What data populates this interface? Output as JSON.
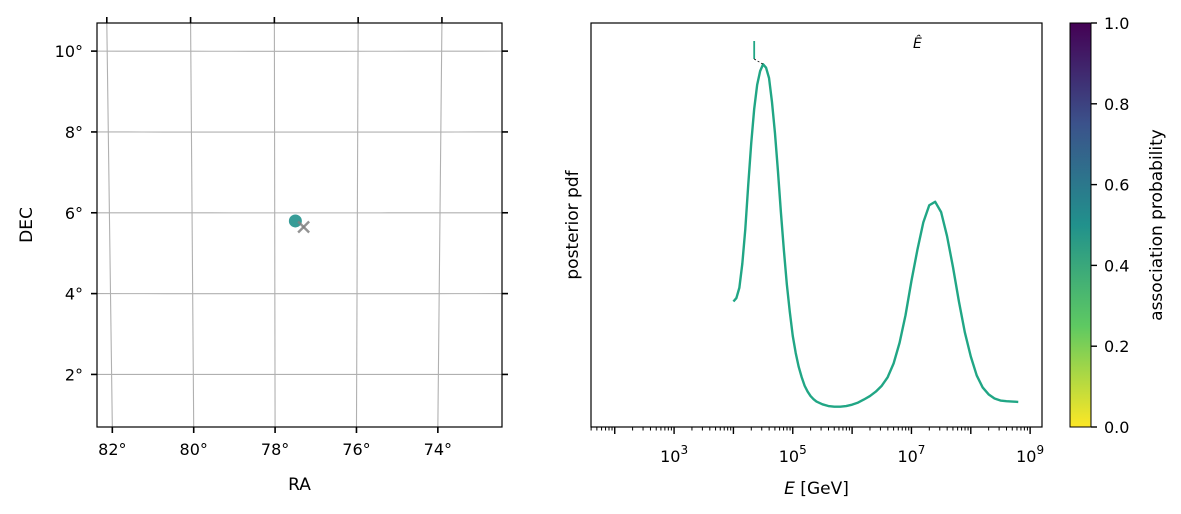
{
  "chart_data": [
    {
      "type": "scatter",
      "projection": "sky",
      "xlabel": "RA",
      "ylabel": "DEC",
      "xlim": [
        82.3,
        72.5
      ],
      "ylim": [
        0.7,
        10.7
      ],
      "x_ticks": [
        82,
        80,
        78,
        76,
        74
      ],
      "x_tick_labels": [
        "82°",
        "80°",
        "78°",
        "76°",
        "74°"
      ],
      "y_ticks": [
        2,
        4,
        6,
        8,
        10
      ],
      "y_tick_labels": [
        "2°",
        "4°",
        "6°",
        "8°",
        "10°"
      ],
      "grid": true,
      "points": [
        {
          "marker": "circle",
          "ra": 77.5,
          "dec": 5.8,
          "color": "#21918c"
        },
        {
          "marker": "x",
          "ra": 77.3,
          "dec": 5.65,
          "color": "#808080"
        }
      ]
    },
    {
      "type": "line",
      "xlabel_var": "E",
      "xlabel_unit": " [GeV]",
      "ylabel": "posterior pdf",
      "xscale": "log",
      "xlim_log10": [
        1.6,
        9.2
      ],
      "x_ticks_log10": [
        3,
        5,
        7,
        9
      ],
      "x_tick_base": "10",
      "y_ticks": [],
      "series": [
        {
          "color": "#21a685",
          "log10E": [
            4.0,
            4.05,
            4.1,
            4.15,
            4.2,
            4.25,
            4.3,
            4.35,
            4.4,
            4.45,
            4.5,
            4.55,
            4.6,
            4.65,
            4.7,
            4.75,
            4.8,
            4.85,
            4.9,
            4.95,
            5.0,
            5.05,
            5.1,
            5.15,
            5.2,
            5.25,
            5.3,
            5.35,
            5.4,
            5.5,
            5.6,
            5.7,
            5.8,
            5.9,
            6.0,
            6.1,
            6.2,
            6.3,
            6.4,
            6.5,
            6.6,
            6.7,
            6.8,
            6.9,
            7.0,
            7.1,
            7.2,
            7.3,
            7.4,
            7.5,
            7.6,
            7.7,
            7.8,
            7.9,
            8.0,
            8.1,
            8.2,
            8.3,
            8.4,
            8.5,
            8.6,
            8.7,
            8.8
          ],
          "pdf": [
            0.31,
            0.32,
            0.35,
            0.42,
            0.52,
            0.65,
            0.77,
            0.87,
            0.94,
            0.98,
            1.0,
            0.99,
            0.96,
            0.89,
            0.8,
            0.69,
            0.57,
            0.46,
            0.36,
            0.28,
            0.21,
            0.16,
            0.12,
            0.09,
            0.065,
            0.048,
            0.035,
            0.026,
            0.019,
            0.011,
            0.006,
            0.004,
            0.004,
            0.006,
            0.01,
            0.016,
            0.025,
            0.035,
            0.048,
            0.065,
            0.09,
            0.13,
            0.19,
            0.27,
            0.37,
            0.46,
            0.54,
            0.59,
            0.6,
            0.57,
            0.5,
            0.41,
            0.31,
            0.22,
            0.15,
            0.095,
            0.06,
            0.04,
            0.028,
            0.022,
            0.02,
            0.019,
            0.018
          ]
        }
      ],
      "annotation": {
        "text": "Ê",
        "x_log10": 7.1
      },
      "marker": {
        "x_log10": 4.4,
        "color": "#21a685"
      }
    }
  ],
  "colorbar": {
    "label": "association probability",
    "ticks": [
      0.0,
      0.2,
      0.4,
      0.6,
      0.8,
      1.0
    ],
    "tick_labels": [
      "0.0",
      "0.2",
      "0.4",
      "0.6",
      "0.8",
      "1.0"
    ],
    "colormap": "viridis_r",
    "stops": [
      "#fde725",
      "#5ec962",
      "#21918c",
      "#3b528b",
      "#440154"
    ]
  }
}
